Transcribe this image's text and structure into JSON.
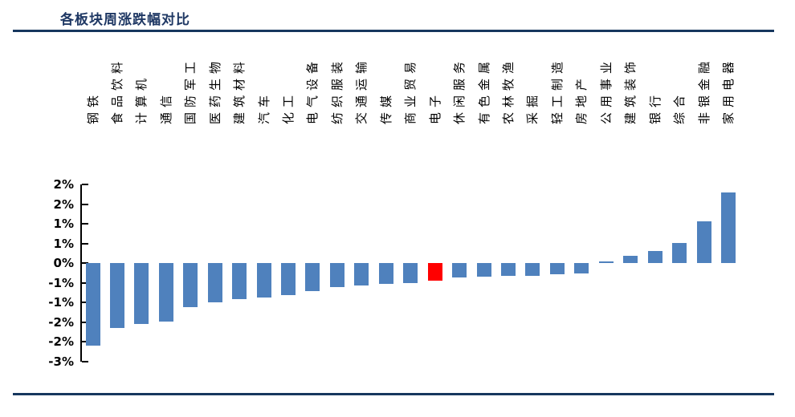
{
  "header": {
    "title": "各板块周涨跌幅对比"
  },
  "chart_data": {
    "type": "bar",
    "title": "各板块周涨跌幅对比",
    "categories": [
      "钢铁",
      "食品饮料",
      "计算机",
      "通信",
      "国防军工",
      "医药生物",
      "建筑材料",
      "汽车",
      "化工",
      "电气设备",
      "纺织服装",
      "交通运输",
      "传媒",
      "商业贸易",
      "电子",
      "休闲服务",
      "有色金属",
      "农林牧渔",
      "采掘",
      "轻工制造",
      "房地产",
      "公用事业",
      "建筑装饰",
      "银行",
      "综合",
      "非银金融",
      "家用电器"
    ],
    "values": [
      -2.1,
      -1.66,
      -1.55,
      -1.49,
      -1.12,
      -1.0,
      -0.91,
      -0.88,
      -0.81,
      -0.72,
      -0.61,
      -0.57,
      -0.53,
      -0.5,
      -0.44,
      -0.37,
      -0.34,
      -0.33,
      -0.32,
      -0.29,
      -0.26,
      0.05,
      0.18,
      0.31,
      0.51,
      1.06,
      1.8
    ],
    "unit": "%",
    "xlabel": "",
    "ylabel": "",
    "ylim": [
      -2.5,
      2.0
    ],
    "ytick_values": [
      2.0,
      1.5,
      1.0,
      0.5,
      0.0,
      -0.5,
      -1.0,
      -1.5,
      -2.0,
      -2.5
    ],
    "ytick_labels": [
      "2%",
      "2%",
      "1%",
      "1%",
      "0%",
      "-1%",
      "-1%",
      "-2%",
      "-2%",
      "-3%"
    ],
    "grid": false,
    "legend": null,
    "highlight_index": 14,
    "highlight_category": "电子",
    "colors": {
      "bar_default": "#4F81BD",
      "bar_highlight": "#FF0000",
      "axis": "#000000",
      "title_text": "#1F3864",
      "divider": "#17375E"
    }
  }
}
